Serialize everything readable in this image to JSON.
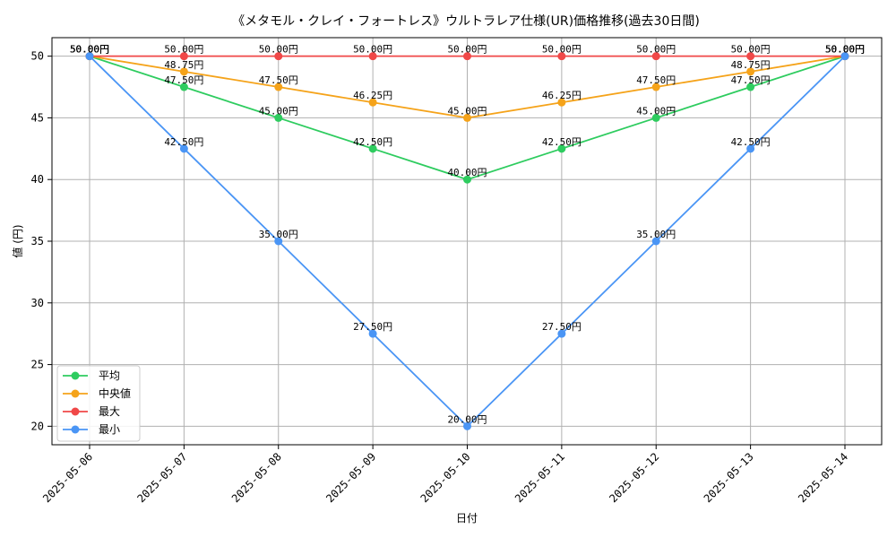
{
  "chart_data": {
    "type": "line",
    "title": "《メタモル・クレイ・フォートレス》ウルトラレア仕様(UR)価格推移(過去30日間)",
    "xlabel": "日付",
    "ylabel": "値 (円)",
    "categories": [
      "2025-05-06",
      "2025-05-07",
      "2025-05-08",
      "2025-05-09",
      "2025-05-10",
      "2025-05-11",
      "2025-05-12",
      "2025-05-13",
      "2025-05-14"
    ],
    "ylim": [
      18.5,
      51.5
    ],
    "yticks": [
      20,
      25,
      30,
      35,
      40,
      45,
      50
    ],
    "grid": true,
    "legend_position": "lower-left",
    "value_format_suffix": "円",
    "series": [
      {
        "name": "平均",
        "color": "#2ecc5f",
        "values": [
          50.0,
          47.5,
          45.0,
          42.5,
          40.0,
          42.5,
          45.0,
          47.5,
          50.0
        ]
      },
      {
        "name": "中央値",
        "color": "#f5a31a",
        "values": [
          50.0,
          48.75,
          47.5,
          46.25,
          45.0,
          46.25,
          47.5,
          48.75,
          50.0
        ]
      },
      {
        "name": "最大",
        "color": "#f04848",
        "values": [
          50.0,
          50.0,
          50.0,
          50.0,
          50.0,
          50.0,
          50.0,
          50.0,
          50.0
        ]
      },
      {
        "name": "最小",
        "color": "#4a95f5",
        "values": [
          50.0,
          42.5,
          35.0,
          27.5,
          20.0,
          27.5,
          35.0,
          42.5,
          50.0
        ]
      }
    ]
  }
}
